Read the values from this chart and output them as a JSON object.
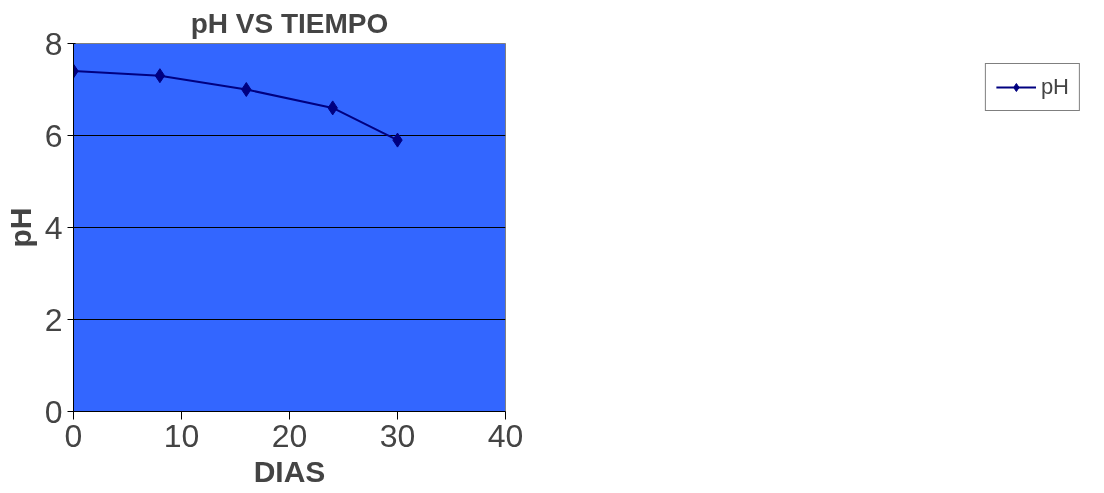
{
  "chart_data": {
    "type": "line",
    "title": "pH VS TIEMPO",
    "xlabel": "DIAS",
    "ylabel": "pH",
    "x": [
      0,
      8,
      16,
      24,
      30
    ],
    "series": [
      {
        "name": "pH",
        "color": "#000080",
        "values": [
          7.4,
          7.3,
          7.0,
          6.6,
          5.9
        ]
      }
    ],
    "xlim": [
      0,
      40
    ],
    "xticks": [
      0,
      10,
      20,
      30,
      40
    ],
    "ylim": [
      0,
      8
    ],
    "yticks": [
      0,
      2,
      4,
      6,
      8
    ],
    "grid": "y",
    "legend": "right",
    "marker": "diamond",
    "line_style": "solid"
  }
}
